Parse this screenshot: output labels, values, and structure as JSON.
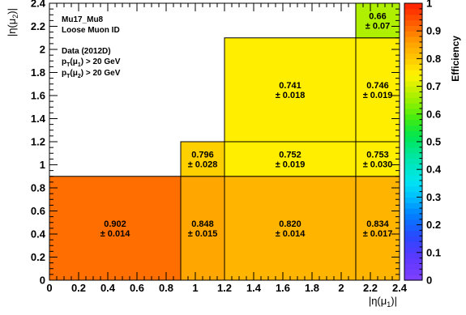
{
  "chart_data": {
    "type": "heatmap",
    "title": "",
    "xlabel": "|η(μ1)|",
    "ylabel": "|η(μ2)|",
    "xlim": [
      0,
      2.4
    ],
    "ylim": [
      0,
      2.4
    ],
    "x_ticks": [
      "0",
      "0.2",
      "0.4",
      "0.6",
      "0.8",
      "1",
      "1.2",
      "1.4",
      "1.6",
      "1.8",
      "2",
      "2.2",
      "2.4"
    ],
    "y_ticks": [
      "0",
      "0.2",
      "0.4",
      "0.6",
      "0.8",
      "1",
      "1.2",
      "1.4",
      "1.6",
      "1.8",
      "2",
      "2.2",
      "2.4"
    ],
    "grid": false,
    "colorbar": {
      "label": "Efficiency",
      "range": [
        0,
        1
      ],
      "ticks": [
        "0",
        "0.1",
        "0.2",
        "0.3",
        "0.4",
        "0.5",
        "0.6",
        "0.7",
        "0.8",
        "0.9",
        "1"
      ]
    },
    "legend_text": [
      "Mu17_Mu8",
      "Loose Muon ID",
      "Data (2012D)",
      "p_T(μ_1) > 20 GeV",
      "p_T(μ_2) > 20 GeV"
    ],
    "cells": [
      {
        "x": [
          0,
          0.9
        ],
        "y": [
          0,
          0.9
        ],
        "value": 0.902,
        "label": "0.902",
        "error": "± 0.014"
      },
      {
        "x": [
          0.9,
          1.2
        ],
        "y": [
          0,
          0.9
        ],
        "value": 0.848,
        "label": "0.848",
        "error": "± 0.015"
      },
      {
        "x": [
          1.2,
          2.1
        ],
        "y": [
          0,
          0.9
        ],
        "value": 0.82,
        "label": "0.820",
        "error": "± 0.014"
      },
      {
        "x": [
          2.1,
          2.4
        ],
        "y": [
          0,
          0.9
        ],
        "value": 0.834,
        "label": "0.834",
        "error": "± 0.017"
      },
      {
        "x": [
          0.9,
          1.2
        ],
        "y": [
          0.9,
          1.2
        ],
        "value": 0.796,
        "label": "0.796",
        "error": "± 0.028"
      },
      {
        "x": [
          1.2,
          2.1
        ],
        "y": [
          0.9,
          1.2
        ],
        "value": 0.752,
        "label": "0.752",
        "error": "± 0.019"
      },
      {
        "x": [
          2.1,
          2.4
        ],
        "y": [
          0.9,
          1.2
        ],
        "value": 0.753,
        "label": "0.753",
        "error": "± 0.030"
      },
      {
        "x": [
          1.2,
          2.1
        ],
        "y": [
          1.2,
          2.1
        ],
        "value": 0.741,
        "label": "0.741",
        "error": "± 0.018"
      },
      {
        "x": [
          2.1,
          2.4
        ],
        "y": [
          1.2,
          2.1
        ],
        "value": 0.746,
        "label": "0.746",
        "error": "± 0.019"
      },
      {
        "x": [
          2.1,
          2.4
        ],
        "y": [
          2.1,
          2.4
        ],
        "value": 0.66,
        "label": "0.66",
        "error": "± 0.07"
      }
    ]
  }
}
